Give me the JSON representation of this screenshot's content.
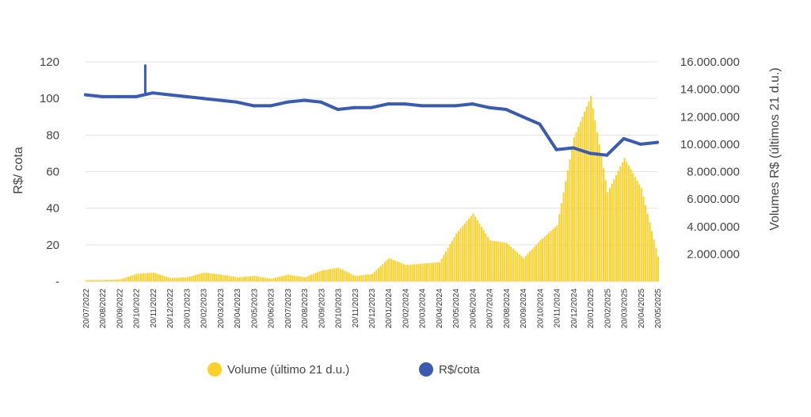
{
  "chart_data": {
    "type": "bar+line",
    "left_axis": {
      "label": "R$/ cota",
      "ticks": [
        "-",
        "20",
        "40",
        "60",
        "80",
        "100",
        "120"
      ],
      "range": [
        0,
        120
      ]
    },
    "right_axis": {
      "label": "Volumes R$ (últimos 21 d.u.)",
      "ticks": [
        "2.000.000",
        "4.000.000",
        "6.000.000",
        "8.000.000",
        "10.000.000",
        "12.000.000",
        "14.000.000",
        "16.000.000"
      ],
      "range": [
        0,
        16000000
      ]
    },
    "x_labels": [
      "20/07/2022",
      "20/08/2022",
      "20/09/2022",
      "20/10/2022",
      "20/11/2022",
      "20/12/2022",
      "20/01/2023",
      "20/02/2023",
      "20/03/2023",
      "20/04/2023",
      "20/05/2023",
      "20/06/2023",
      "20/07/2023",
      "20/08/2023",
      "20/09/2023",
      "20/10/2023",
      "20/11/2023",
      "20/12/2023",
      "20/01/2024",
      "20/02/2024",
      "20/03/2024",
      "20/04/2024",
      "20/05/2024",
      "20/06/2024",
      "20/07/2024",
      "20/08/2024",
      "20/09/2024",
      "20/10/2024",
      "20/11/2024",
      "20/12/2024",
      "20/01/2025",
      "20/02/2025",
      "20/03/2025",
      "20/04/2025",
      "20/05/2025"
    ],
    "series": [
      {
        "name": "Volume (último 21 d.u.)",
        "type": "bar",
        "axis": "right",
        "color": "#FBD12A",
        "values": [
          100000,
          100000,
          150000,
          550000,
          650000,
          250000,
          300000,
          650000,
          500000,
          300000,
          400000,
          200000,
          500000,
          300000,
          800000,
          1000000,
          400000,
          550000,
          1700000,
          1200000,
          1300000,
          1400000,
          3500000,
          4950000,
          3000000,
          2800000,
          1700000,
          3000000,
          4100000,
          10500000,
          13500000,
          6500000,
          9000000,
          6800000,
          1800000
        ]
      },
      {
        "name": "R$/cota",
        "type": "line",
        "axis": "left",
        "color": "#3A5BB0",
        "values": [
          102,
          101,
          101,
          101,
          103,
          102,
          101,
          100,
          99,
          98,
          96,
          96,
          98,
          99,
          98,
          94,
          95,
          95,
          97,
          97,
          96,
          96,
          96,
          97,
          95,
          94,
          90,
          86,
          72,
          73,
          70,
          69,
          78,
          75,
          76
        ],
        "annotations": [
          {
            "x": "20/11/2022",
            "value": 118
          }
        ]
      }
    ],
    "legend": {
      "position": "bottom"
    },
    "grid": {
      "horizontal": true,
      "vertical": false
    }
  }
}
